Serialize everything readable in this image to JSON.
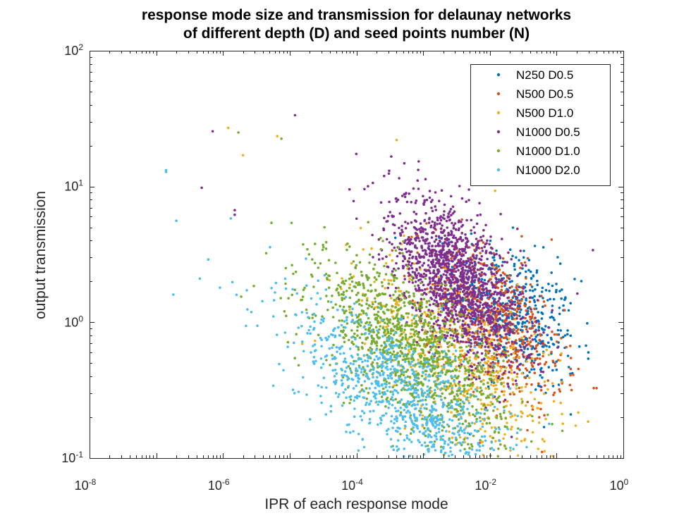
{
  "chart_data": {
    "type": "scatter",
    "title": [
      "response mode size and transmission for delaunay networks",
      "of different depth (D) and seed points number (N)"
    ],
    "xlabel": "IPR of each response mode",
    "ylabel": "output transmission",
    "xscale": "log",
    "yscale": "log",
    "xlim": [
      1e-08,
      1
    ],
    "ylim": [
      0.1,
      100
    ],
    "xticks": [
      {
        "base": "10",
        "exp": "-8"
      },
      {
        "base": "10",
        "exp": "-6"
      },
      {
        "base": "10",
        "exp": "-4"
      },
      {
        "base": "10",
        "exp": "-2"
      },
      {
        "base": "10",
        "exp": "0"
      }
    ],
    "yticks": [
      {
        "base": "10",
        "exp": "-1"
      },
      {
        "base": "10",
        "exp": "0"
      },
      {
        "base": "10",
        "exp": "1"
      },
      {
        "base": "10",
        "exp": "2"
      }
    ],
    "grid": false,
    "legend_position": "top-right",
    "series": [
      {
        "name": "N250 D0.5",
        "color": "#0072BD",
        "cloud": {
          "log10_ipr_center": -1.6,
          "log10_ipr_spread": 0.45,
          "log10_t_center": 0.05,
          "log10_t_spread": 0.25,
          "slope": -0.25,
          "count": 450
        }
      },
      {
        "name": "N500 D0.5",
        "color": "#D95319",
        "cloud": {
          "log10_ipr_center": -1.9,
          "log10_ipr_spread": 0.5,
          "log10_t_center": 0.0,
          "log10_t_spread": 0.25,
          "slope": -0.3,
          "count": 550
        }
      },
      {
        "name": "N500 D1.0",
        "color": "#EDB120",
        "cloud": {
          "log10_ipr_center": -2.4,
          "log10_ipr_spread": 0.75,
          "log10_t_center": -0.25,
          "log10_t_spread": 0.3,
          "slope": -0.3,
          "count": 600
        }
      },
      {
        "name": "N1000 D0.5",
        "color": "#7E2F8E",
        "cloud": {
          "log10_ipr_center": -2.5,
          "log10_ipr_spread": 0.5,
          "log10_t_center": 0.3,
          "log10_t_spread": 0.25,
          "slope": -0.35,
          "count": 1500
        }
      },
      {
        "name": "N1000 D1.0",
        "color": "#77AC30",
        "cloud": {
          "log10_ipr_center": -3.2,
          "log10_ipr_spread": 0.7,
          "log10_t_center": -0.2,
          "log10_t_spread": 0.25,
          "slope": -0.3,
          "count": 1200
        }
      },
      {
        "name": "N1000 D2.0",
        "color": "#4DBEEE",
        "cloud": {
          "log10_ipr_center": -3.3,
          "log10_ipr_spread": 0.8,
          "log10_t_center": -0.55,
          "log10_t_spread": 0.25,
          "slope": -0.3,
          "count": 900
        }
      }
    ],
    "outlier_points": [
      {
        "series": 5,
        "x": 1.4e-07,
        "y": 13.2
      },
      {
        "series": 5,
        "x": 1.4e-07,
        "y": 12.8
      },
      {
        "series": 5,
        "x": 2e-07,
        "y": 5.6
      },
      {
        "series": 5,
        "x": 1.8e-07,
        "y": 1.6
      },
      {
        "series": 5,
        "x": 4.5e-07,
        "y": 2.1
      },
      {
        "series": 5,
        "x": 6e-07,
        "y": 2.9
      },
      {
        "series": 5,
        "x": 9e-07,
        "y": 1.8
      },
      {
        "series": 3,
        "x": 4.8e-07,
        "y": 9.8
      },
      {
        "series": 3,
        "x": 7e-07,
        "y": 25.5
      },
      {
        "series": 3,
        "x": 1.5e-06,
        "y": 6.2
      },
      {
        "series": 3,
        "x": 1.5e-06,
        "y": 6.7
      },
      {
        "series": 3,
        "x": 1.2e-05,
        "y": 33.5
      },
      {
        "series": 3,
        "x": 0.35,
        "y": 3.4
      },
      {
        "series": 2,
        "x": 1.2e-06,
        "y": 27.0
      },
      {
        "series": 2,
        "x": 2e-06,
        "y": 17.0
      },
      {
        "series": 2,
        "x": 6.5e-06,
        "y": 23.5
      },
      {
        "series": 2,
        "x": 0.012,
        "y": 9.3
      },
      {
        "series": 2,
        "x": 0.0004,
        "y": 22.0
      },
      {
        "series": 4,
        "x": 1.7e-06,
        "y": 25.0
      },
      {
        "series": 4,
        "x": 7.5e-06,
        "y": 22.5
      },
      {
        "series": 1,
        "x": 0.03,
        "y": 4.3
      },
      {
        "series": 0,
        "x": 0.3,
        "y": 0.6
      }
    ]
  }
}
